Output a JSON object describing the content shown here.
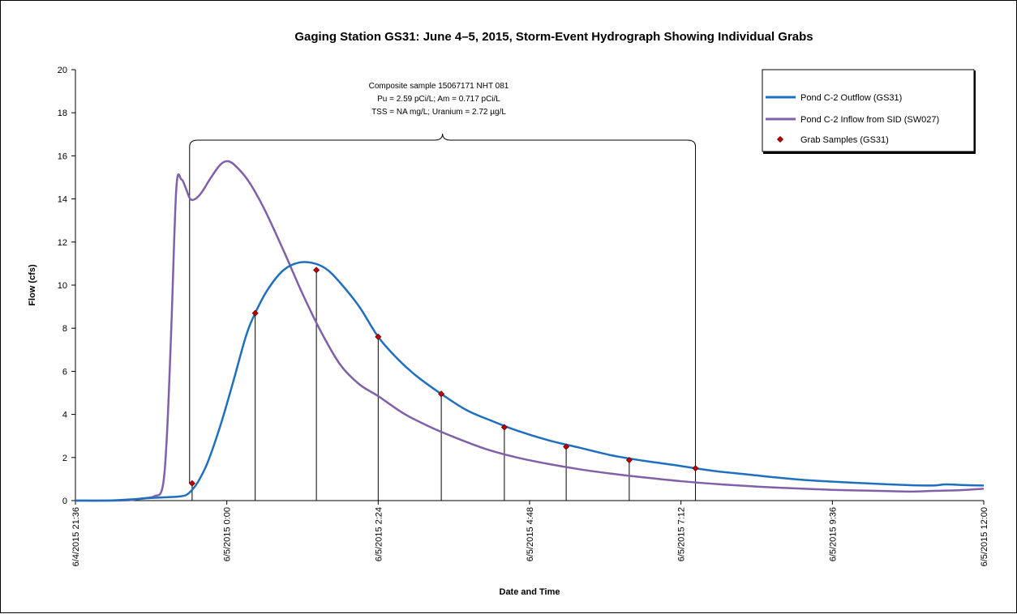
{
  "chart_data": {
    "type": "line",
    "title": "Gaging Station GS31: June 4–5, 2015, Storm-Event Hydrograph Showing Individual Grabs",
    "xlabel": "Date and Time",
    "ylabel": "Flow (cfs)",
    "x_unit": "hours since 6/4/2015 21:36",
    "xlim": [
      "6/4/2015 21:36",
      "6/5/2015 12:00"
    ],
    "ylim": [
      0,
      20
    ],
    "y_ticks": [
      "0",
      "2",
      "4",
      "6",
      "8",
      "10",
      "12",
      "14",
      "16",
      "18",
      "20"
    ],
    "x_ticks": [
      {
        "label": "6/4/2015 21:36",
        "h": 0
      },
      {
        "label": "6/5/2015 0:00",
        "h": 2.4
      },
      {
        "label": "6/5/2015 2:24",
        "h": 4.8
      },
      {
        "label": "6/5/2015 4:48",
        "h": 7.2
      },
      {
        "label": "6/5/2015 7:12",
        "h": 9.6
      },
      {
        "label": "6/5/2015 9:36",
        "h": 12.0
      },
      {
        "label": "6/5/2015 12:00",
        "h": 14.4
      }
    ],
    "annotation": {
      "lines": [
        "Composite sample 15067171 NHT 081",
        "Pu = 2.59 pCi/L; Am = 0.717 pCi/L",
        "TSS = NA mg/L; Uranium = 2.72 µg/L"
      ],
      "bracket_start_h": 1.81,
      "bracket_end_h": 9.83
    },
    "legend": {
      "position": "top-right",
      "entries": [
        {
          "label": "Pond C-2 Outflow (GS31)",
          "color": "#1f6fbf",
          "kind": "line"
        },
        {
          "label": "Pond C-2 Inflow from SID (SW027)",
          "color": "#8060a8",
          "kind": "line"
        },
        {
          "label": "Grab Samples (GS31)",
          "color": "#c00000",
          "kind": "marker"
        }
      ]
    },
    "series": [
      {
        "name": "Pond C-2 Outflow (GS31)",
        "color": "#1f6fbf",
        "x": [
          0,
          0.5,
          0.85,
          1.2,
          1.4,
          1.6,
          1.75,
          1.85,
          1.95,
          2.1,
          2.3,
          2.5,
          2.7,
          2.85,
          3.05,
          3.3,
          3.55,
          3.8,
          4.0,
          4.2,
          4.5,
          4.8,
          5.1,
          5.4,
          5.8,
          6.2,
          6.6,
          7.0,
          7.5,
          8.0,
          8.5,
          9.0,
          9.5,
          9.83,
          10.2,
          10.7,
          11.2,
          11.7,
          12.2,
          12.7,
          13.2,
          13.6,
          13.8,
          14.1,
          14.4
        ],
        "y": [
          0,
          0,
          0.05,
          0.12,
          0.15,
          0.18,
          0.25,
          0.5,
          0.9,
          1.8,
          3.5,
          5.5,
          7.6,
          8.7,
          9.8,
          10.7,
          11.05,
          11.0,
          10.7,
          10.1,
          9.0,
          7.6,
          6.6,
          5.8,
          4.95,
          4.2,
          3.7,
          3.25,
          2.8,
          2.45,
          2.1,
          1.85,
          1.65,
          1.5,
          1.35,
          1.2,
          1.05,
          0.93,
          0.85,
          0.78,
          0.72,
          0.7,
          0.75,
          0.72,
          0.7
        ]
      },
      {
        "name": "Pond C-2 Inflow from SID (SW027)",
        "color": "#8060a8",
        "x": [
          0,
          0.5,
          0.85,
          1.05,
          1.25,
          1.38,
          1.45,
          1.52,
          1.6,
          1.68,
          1.75,
          1.82,
          1.9,
          2.0,
          2.15,
          2.3,
          2.42,
          2.55,
          2.75,
          3.0,
          3.3,
          3.6,
          3.9,
          4.2,
          4.5,
          4.8,
          5.2,
          5.6,
          6.0,
          6.5,
          7.0,
          7.5,
          8.0,
          8.5,
          9.0,
          9.6,
          10.2,
          10.8,
          11.4,
          12.0,
          12.6,
          13.2,
          13.6,
          14.0,
          14.4
        ],
        "y": [
          0,
          0,
          0.02,
          0.1,
          0.2,
          0.6,
          3.0,
          8.0,
          14.5,
          14.9,
          14.5,
          14.0,
          14.0,
          14.3,
          15.0,
          15.6,
          15.75,
          15.5,
          14.8,
          13.5,
          11.6,
          9.6,
          7.8,
          6.3,
          5.4,
          4.85,
          4.05,
          3.45,
          2.95,
          2.4,
          2.0,
          1.7,
          1.45,
          1.25,
          1.08,
          0.9,
          0.76,
          0.65,
          0.57,
          0.5,
          0.46,
          0.42,
          0.45,
          0.48,
          0.55
        ]
      }
    ],
    "grab_samples": {
      "name": "Grab Samples (GS31)",
      "x": [
        1.85,
        2.85,
        3.82,
        4.8,
        5.8,
        6.8,
        7.78,
        8.78,
        9.83
      ],
      "y": [
        0.8,
        8.7,
        10.7,
        7.6,
        4.95,
        3.4,
        2.5,
        1.88,
        1.5
      ]
    }
  }
}
